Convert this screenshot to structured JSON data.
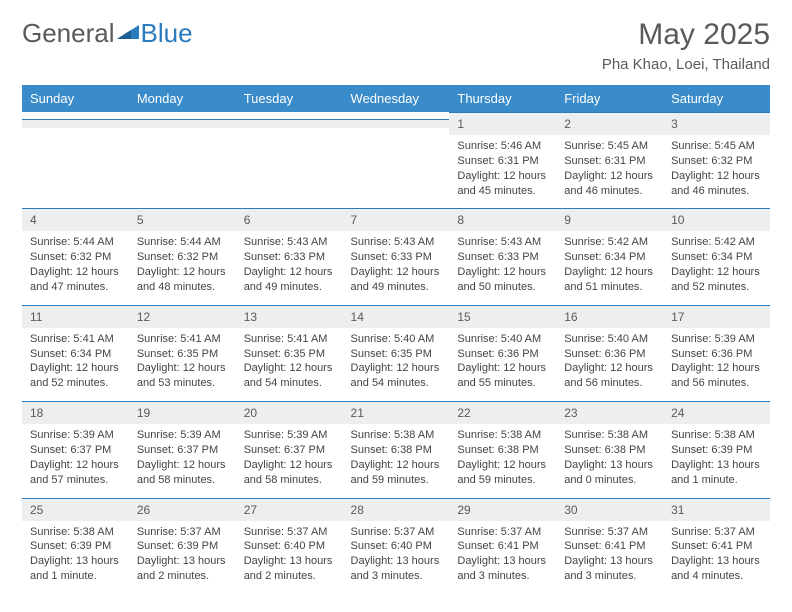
{
  "logo": {
    "general": "General",
    "blue": "Blue"
  },
  "title": "May 2025",
  "location": "Pha Khao, Loei, Thailand",
  "colors": {
    "header_bg": "#3a8bc9",
    "header_text": "#ffffff",
    "daynum_bg": "#eceeef",
    "border": "#2b7bbf",
    "text": "#5a5a5a"
  },
  "dayNames": [
    "Sunday",
    "Monday",
    "Tuesday",
    "Wednesday",
    "Thursday",
    "Friday",
    "Saturday"
  ],
  "weeks": [
    [
      {
        "n": "",
        "sr": "",
        "ss": "",
        "dl": ""
      },
      {
        "n": "",
        "sr": "",
        "ss": "",
        "dl": ""
      },
      {
        "n": "",
        "sr": "",
        "ss": "",
        "dl": ""
      },
      {
        "n": "",
        "sr": "",
        "ss": "",
        "dl": ""
      },
      {
        "n": "1",
        "sr": "Sunrise: 5:46 AM",
        "ss": "Sunset: 6:31 PM",
        "dl": "Daylight: 12 hours and 45 minutes."
      },
      {
        "n": "2",
        "sr": "Sunrise: 5:45 AM",
        "ss": "Sunset: 6:31 PM",
        "dl": "Daylight: 12 hours and 46 minutes."
      },
      {
        "n": "3",
        "sr": "Sunrise: 5:45 AM",
        "ss": "Sunset: 6:32 PM",
        "dl": "Daylight: 12 hours and 46 minutes."
      }
    ],
    [
      {
        "n": "4",
        "sr": "Sunrise: 5:44 AM",
        "ss": "Sunset: 6:32 PM",
        "dl": "Daylight: 12 hours and 47 minutes."
      },
      {
        "n": "5",
        "sr": "Sunrise: 5:44 AM",
        "ss": "Sunset: 6:32 PM",
        "dl": "Daylight: 12 hours and 48 minutes."
      },
      {
        "n": "6",
        "sr": "Sunrise: 5:43 AM",
        "ss": "Sunset: 6:33 PM",
        "dl": "Daylight: 12 hours and 49 minutes."
      },
      {
        "n": "7",
        "sr": "Sunrise: 5:43 AM",
        "ss": "Sunset: 6:33 PM",
        "dl": "Daylight: 12 hours and 49 minutes."
      },
      {
        "n": "8",
        "sr": "Sunrise: 5:43 AM",
        "ss": "Sunset: 6:33 PM",
        "dl": "Daylight: 12 hours and 50 minutes."
      },
      {
        "n": "9",
        "sr": "Sunrise: 5:42 AM",
        "ss": "Sunset: 6:34 PM",
        "dl": "Daylight: 12 hours and 51 minutes."
      },
      {
        "n": "10",
        "sr": "Sunrise: 5:42 AM",
        "ss": "Sunset: 6:34 PM",
        "dl": "Daylight: 12 hours and 52 minutes."
      }
    ],
    [
      {
        "n": "11",
        "sr": "Sunrise: 5:41 AM",
        "ss": "Sunset: 6:34 PM",
        "dl": "Daylight: 12 hours and 52 minutes."
      },
      {
        "n": "12",
        "sr": "Sunrise: 5:41 AM",
        "ss": "Sunset: 6:35 PM",
        "dl": "Daylight: 12 hours and 53 minutes."
      },
      {
        "n": "13",
        "sr": "Sunrise: 5:41 AM",
        "ss": "Sunset: 6:35 PM",
        "dl": "Daylight: 12 hours and 54 minutes."
      },
      {
        "n": "14",
        "sr": "Sunrise: 5:40 AM",
        "ss": "Sunset: 6:35 PM",
        "dl": "Daylight: 12 hours and 54 minutes."
      },
      {
        "n": "15",
        "sr": "Sunrise: 5:40 AM",
        "ss": "Sunset: 6:36 PM",
        "dl": "Daylight: 12 hours and 55 minutes."
      },
      {
        "n": "16",
        "sr": "Sunrise: 5:40 AM",
        "ss": "Sunset: 6:36 PM",
        "dl": "Daylight: 12 hours and 56 minutes."
      },
      {
        "n": "17",
        "sr": "Sunrise: 5:39 AM",
        "ss": "Sunset: 6:36 PM",
        "dl": "Daylight: 12 hours and 56 minutes."
      }
    ],
    [
      {
        "n": "18",
        "sr": "Sunrise: 5:39 AM",
        "ss": "Sunset: 6:37 PM",
        "dl": "Daylight: 12 hours and 57 minutes."
      },
      {
        "n": "19",
        "sr": "Sunrise: 5:39 AM",
        "ss": "Sunset: 6:37 PM",
        "dl": "Daylight: 12 hours and 58 minutes."
      },
      {
        "n": "20",
        "sr": "Sunrise: 5:39 AM",
        "ss": "Sunset: 6:37 PM",
        "dl": "Daylight: 12 hours and 58 minutes."
      },
      {
        "n": "21",
        "sr": "Sunrise: 5:38 AM",
        "ss": "Sunset: 6:38 PM",
        "dl": "Daylight: 12 hours and 59 minutes."
      },
      {
        "n": "22",
        "sr": "Sunrise: 5:38 AM",
        "ss": "Sunset: 6:38 PM",
        "dl": "Daylight: 12 hours and 59 minutes."
      },
      {
        "n": "23",
        "sr": "Sunrise: 5:38 AM",
        "ss": "Sunset: 6:38 PM",
        "dl": "Daylight: 13 hours and 0 minutes."
      },
      {
        "n": "24",
        "sr": "Sunrise: 5:38 AM",
        "ss": "Sunset: 6:39 PM",
        "dl": "Daylight: 13 hours and 1 minute."
      }
    ],
    [
      {
        "n": "25",
        "sr": "Sunrise: 5:38 AM",
        "ss": "Sunset: 6:39 PM",
        "dl": "Daylight: 13 hours and 1 minute."
      },
      {
        "n": "26",
        "sr": "Sunrise: 5:37 AM",
        "ss": "Sunset: 6:39 PM",
        "dl": "Daylight: 13 hours and 2 minutes."
      },
      {
        "n": "27",
        "sr": "Sunrise: 5:37 AM",
        "ss": "Sunset: 6:40 PM",
        "dl": "Daylight: 13 hours and 2 minutes."
      },
      {
        "n": "28",
        "sr": "Sunrise: 5:37 AM",
        "ss": "Sunset: 6:40 PM",
        "dl": "Daylight: 13 hours and 3 minutes."
      },
      {
        "n": "29",
        "sr": "Sunrise: 5:37 AM",
        "ss": "Sunset: 6:41 PM",
        "dl": "Daylight: 13 hours and 3 minutes."
      },
      {
        "n": "30",
        "sr": "Sunrise: 5:37 AM",
        "ss": "Sunset: 6:41 PM",
        "dl": "Daylight: 13 hours and 3 minutes."
      },
      {
        "n": "31",
        "sr": "Sunrise: 5:37 AM",
        "ss": "Sunset: 6:41 PM",
        "dl": "Daylight: 13 hours and 4 minutes."
      }
    ]
  ]
}
